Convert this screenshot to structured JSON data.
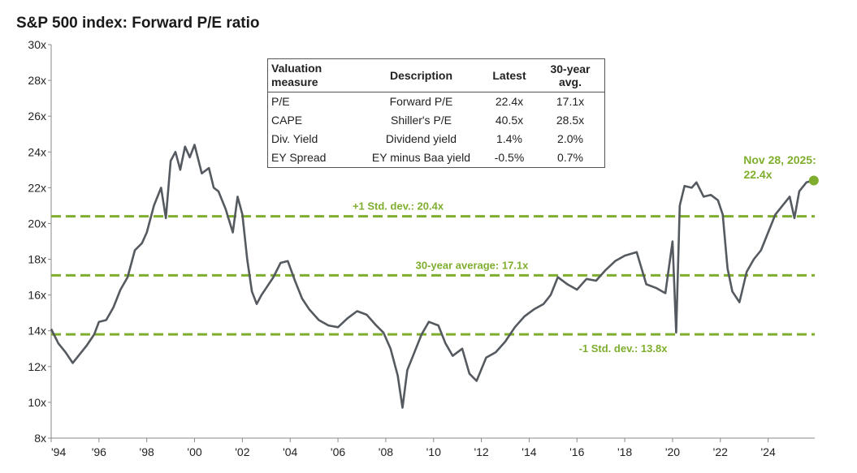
{
  "chart_data": {
    "type": "line",
    "title": "S&P 500 index: Forward P/E ratio",
    "y_unit_suffix": "x",
    "ylim": [
      8,
      30
    ],
    "yticks": [
      "8x",
      "10x",
      "12x",
      "14x",
      "16x",
      "18x",
      "20x",
      "22x",
      "24x",
      "26x",
      "28x",
      "30x"
    ],
    "xlim": [
      1994,
      2025.95
    ],
    "xticks": [
      "'94",
      "'96",
      "'98",
      "'00",
      "'02",
      "'04",
      "'06",
      "'08",
      "'10",
      "'12",
      "'14",
      "'16",
      "'18",
      "'20",
      "'22",
      "'24"
    ],
    "grid": false,
    "series": [
      {
        "name": "Forward P/E",
        "color": "#555a60",
        "x": [
          1994.0,
          1994.3,
          1994.6,
          1994.9,
          1995.2,
          1995.5,
          1995.8,
          1996.0,
          1996.3,
          1996.6,
          1996.9,
          1997.2,
          1997.5,
          1997.8,
          1998.0,
          1998.3,
          1998.6,
          1998.8,
          1999.0,
          1999.2,
          1999.4,
          1999.6,
          1999.8,
          2000.0,
          2000.3,
          2000.6,
          2000.8,
          2001.0,
          2001.3,
          2001.6,
          2001.8,
          2002.0,
          2002.2,
          2002.4,
          2002.6,
          2002.8,
          2003.0,
          2003.3,
          2003.6,
          2003.9,
          2004.2,
          2004.5,
          2004.8,
          2005.2,
          2005.6,
          2006.0,
          2006.4,
          2006.8,
          2007.2,
          2007.6,
          2007.9,
          2008.2,
          2008.5,
          2008.7,
          2008.9,
          2009.2,
          2009.5,
          2009.8,
          2010.2,
          2010.5,
          2010.8,
          2011.2,
          2011.5,
          2011.8,
          2012.2,
          2012.6,
          2013.0,
          2013.4,
          2013.8,
          2014.2,
          2014.6,
          2014.9,
          2015.2,
          2015.6,
          2016.0,
          2016.4,
          2016.8,
          2017.2,
          2017.6,
          2018.0,
          2018.5,
          2018.9,
          2019.3,
          2019.7,
          2020.0,
          2020.15,
          2020.3,
          2020.5,
          2020.8,
          2021.0,
          2021.3,
          2021.6,
          2021.9,
          2022.1,
          2022.3,
          2022.5,
          2022.8,
          2023.1,
          2023.4,
          2023.7,
          2024.0,
          2024.3,
          2024.6,
          2024.9,
          2025.1,
          2025.3,
          2025.6,
          2025.91
        ],
        "y": [
          14.1,
          13.3,
          12.8,
          12.2,
          12.7,
          13.2,
          13.8,
          14.5,
          14.6,
          15.3,
          16.3,
          17.0,
          18.5,
          18.9,
          19.5,
          21.0,
          22.0,
          20.3,
          23.5,
          24.0,
          23.0,
          24.3,
          23.7,
          24.4,
          22.8,
          23.1,
          22.0,
          21.8,
          20.8,
          19.5,
          21.5,
          20.5,
          18.0,
          16.2,
          15.5,
          16.0,
          16.4,
          17.0,
          17.8,
          17.9,
          16.8,
          15.8,
          15.2,
          14.6,
          14.3,
          14.2,
          14.7,
          15.1,
          14.9,
          14.3,
          13.9,
          13.0,
          11.5,
          9.7,
          11.8,
          12.8,
          13.8,
          14.5,
          14.3,
          13.3,
          12.6,
          13.0,
          11.6,
          11.2,
          12.5,
          12.8,
          13.4,
          14.2,
          14.8,
          15.2,
          15.5,
          16.0,
          17.0,
          16.6,
          16.3,
          16.9,
          16.8,
          17.4,
          17.9,
          18.2,
          18.4,
          16.6,
          16.4,
          16.1,
          19.0,
          13.9,
          21.0,
          22.1,
          22.0,
          22.3,
          21.5,
          21.6,
          21.3,
          20.5,
          17.5,
          16.2,
          15.6,
          17.3,
          18.0,
          18.5,
          19.5,
          20.5,
          21.0,
          21.5,
          20.3,
          21.8,
          22.3,
          22.4
        ]
      }
    ],
    "reference_lines": [
      {
        "label": "+1 Std. dev.: 20.4x",
        "value": 20.4
      },
      {
        "label": "30-year average: 17.1x",
        "value": 17.1
      },
      {
        "label": "-1 Std. dev.: 13.8x",
        "value": 13.8
      }
    ],
    "annotation": {
      "line1": "Nov 28, 2025:",
      "line2": "22.4x",
      "x": 2025.91,
      "y": 22.4
    },
    "table": {
      "headers": [
        "Valuation measure",
        "Description",
        "Latest",
        "30-year avg."
      ],
      "rows": [
        [
          "P/E",
          "Forward P/E",
          "22.4x",
          "17.1x"
        ],
        [
          "CAPE",
          "Shiller's P/E",
          "40.5x",
          "28.5x"
        ],
        [
          "Div. Yield",
          "Dividend yield",
          "1.4%",
          "2.0%"
        ],
        [
          "EY Spread",
          "EY minus Baa yield",
          "-0.5%",
          "0.7%"
        ]
      ]
    }
  }
}
